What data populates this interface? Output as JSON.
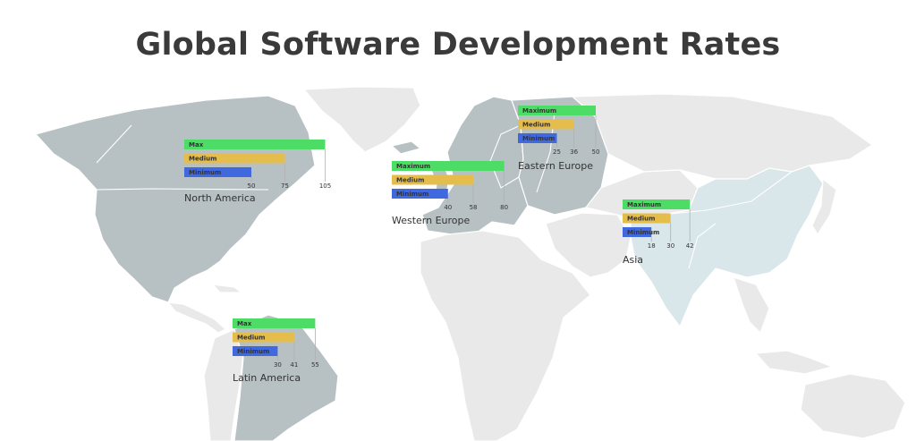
{
  "chart_data": {
    "type": "bar",
    "title": "Global Software Development Rates",
    "colors": {
      "max": "#4ddd66",
      "medium": "#e4bd4c",
      "minimum": "#4069e0"
    },
    "regions": [
      {
        "name": "North America",
        "bars": [
          {
            "label": "Max",
            "value": 105,
            "key": "max"
          },
          {
            "label": "Medium",
            "value": 75,
            "key": "medium"
          },
          {
            "label": "Minimum",
            "value": 50,
            "key": "minimum"
          }
        ]
      },
      {
        "name": "Western Europe",
        "bars": [
          {
            "label": "Maximum",
            "value": 80,
            "key": "max"
          },
          {
            "label": "Medium",
            "value": 58,
            "key": "medium"
          },
          {
            "label": "Minimum",
            "value": 40,
            "key": "minimum"
          }
        ]
      },
      {
        "name": "Eastern Europe",
        "bars": [
          {
            "label": "Maximum",
            "value": 50,
            "key": "max"
          },
          {
            "label": "Medium",
            "value": 36,
            "key": "medium"
          },
          {
            "label": "Minimum",
            "value": 25,
            "key": "minimum"
          }
        ]
      },
      {
        "name": "Asia",
        "bars": [
          {
            "label": "Maximum",
            "value": 42,
            "key": "max"
          },
          {
            "label": "Medium",
            "value": 30,
            "key": "medium"
          },
          {
            "label": "Minimum",
            "value": 18,
            "key": "minimum"
          }
        ]
      },
      {
        "name": "Latin America",
        "bars": [
          {
            "label": "Max",
            "value": 55,
            "key": "max"
          },
          {
            "label": "Medium",
            "value": 41,
            "key": "medium"
          },
          {
            "label": "Minimum",
            "value": 30,
            "key": "minimum"
          }
        ]
      }
    ]
  }
}
